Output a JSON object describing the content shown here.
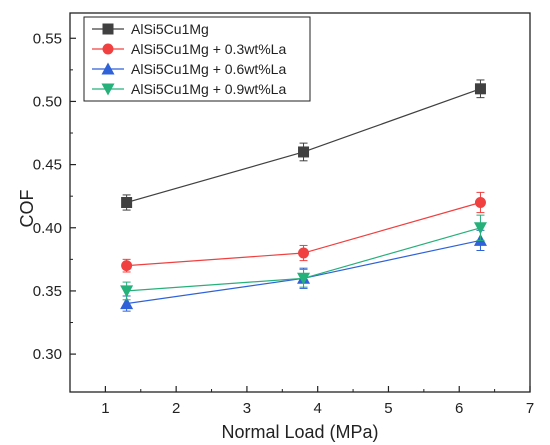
{
  "chart_data": {
    "type": "line",
    "title": "",
    "xlabel": "Normal Load (MPa)",
    "ylabel": "COF",
    "xlim": [
      0.5,
      7
    ],
    "ylim": [
      0.27,
      0.57
    ],
    "xticks": [
      1,
      2,
      3,
      4,
      5,
      6,
      7
    ],
    "yticks": [
      0.3,
      0.35,
      0.4,
      0.45,
      0.5,
      0.55
    ],
    "ytick_labels": [
      "0.30",
      "0.35",
      "0.40",
      "0.45",
      "0.50",
      "0.55"
    ],
    "x": [
      1.3,
      3.8,
      6.3
    ],
    "grid": false,
    "legend_position": "top-left",
    "series": [
      {
        "name": "AlSi5Cu1Mg",
        "values": [
          0.42,
          0.46,
          0.51
        ],
        "errors": [
          0.006,
          0.007,
          0.007
        ],
        "color": "#404040",
        "marker": "square"
      },
      {
        "name": "AlSi5Cu1Mg + 0.3wt%La",
        "values": [
          0.37,
          0.38,
          0.42
        ],
        "errors": [
          0.005,
          0.006,
          0.008
        ],
        "color": "#f04040",
        "marker": "circle"
      },
      {
        "name": "AlSi5Cu1Mg + 0.6wt%La",
        "values": [
          0.34,
          0.36,
          0.39
        ],
        "errors": [
          0.006,
          0.008,
          0.008
        ],
        "color": "#2f62d8",
        "marker": "triangle-up"
      },
      {
        "name": "AlSi5Cu1Mg + 0.9wt%La",
        "values": [
          0.35,
          0.36,
          0.4
        ],
        "errors": [
          0.007,
          0.007,
          0.01
        ],
        "color": "#26b07a",
        "marker": "triangle-down"
      }
    ]
  }
}
